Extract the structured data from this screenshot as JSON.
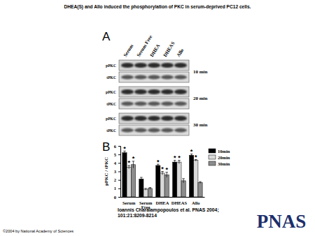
{
  "title": "DHEA(S) and Allo induced the phosphorylation of PKC in serum-deprived PC12 cells.",
  "panel_a": {
    "label": "A",
    "lanes": [
      "Serum",
      "Serum Free",
      "DHEA",
      "DHEAS",
      "Allo"
    ],
    "panels": [
      {
        "time": "10 min",
        "rows": [
          "pPKC",
          "tPKC"
        ]
      },
      {
        "time": "20 min",
        "rows": [
          "pPKC",
          "tPKC"
        ]
      },
      {
        "time": "30 min",
        "rows": [
          "pPKC",
          "tPKC"
        ]
      }
    ]
  },
  "panel_b": {
    "label": "B"
  },
  "chart_data": {
    "type": "bar",
    "categories": [
      "Serum",
      "Serum Free",
      "DHEA",
      "DHEAS",
      "Allo"
    ],
    "y_label": "pPKC / tPKC",
    "ylim": [
      0,
      6
    ],
    "yticks": [
      0,
      1,
      2,
      3,
      4,
      5,
      6
    ],
    "grid": false,
    "legend": "right",
    "series": [
      {
        "name": "10min",
        "color": "#000000",
        "values": [
          5.2,
          2.1,
          3.7,
          4.1,
          4.9
        ],
        "errors": [
          0.2,
          0.2,
          0.15,
          0.2,
          0.15
        ],
        "asterisks": [
          "*",
          null,
          "*",
          "*",
          "*"
        ]
      },
      {
        "name": "20min",
        "color": "#d9d9d9",
        "values": [
          3.5,
          0.9,
          2.8,
          4.1,
          4.3
        ],
        "errors": [
          0.2,
          0.1,
          0.2,
          0.2,
          0.1
        ],
        "asterisks": [
          "*",
          null,
          "*",
          "*",
          "*"
        ]
      },
      {
        "name": "30min",
        "color": "#8c8c8c",
        "values": [
          3.8,
          1.0,
          2.6,
          1.9,
          1.7
        ],
        "errors": [
          0.4,
          0.1,
          0.3,
          0.25,
          0.1
        ],
        "asterisks": [
          "*",
          null,
          "*",
          null,
          null
        ]
      }
    ]
  },
  "citation": "Ioannis Charalampopoulos et al. PNAS 2004;101:21:8209-8214",
  "logo": "PNAS",
  "copyright": "©2004 by National Academy of Sciences"
}
